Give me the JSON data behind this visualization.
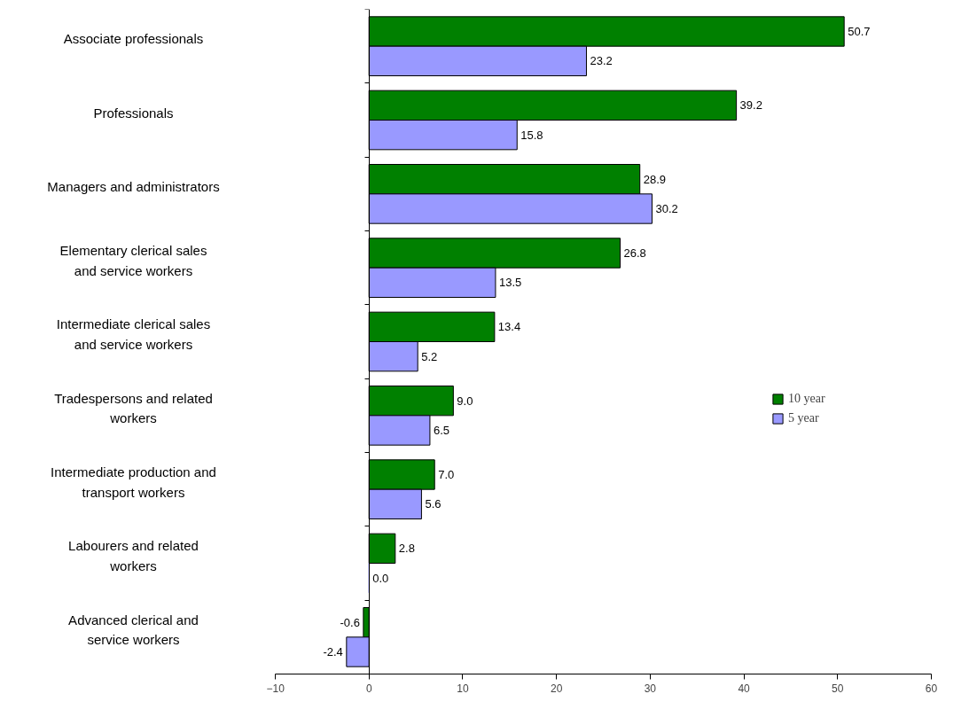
{
  "chart_data": {
    "type": "bar",
    "orientation": "horizontal",
    "categories": [
      "Associate professionals",
      "Professionals",
      "Managers and administrators",
      "Elementary clerical sales and service workers",
      "Intermediate clerical sales and service workers",
      "Tradespersons and related workers",
      "Intermediate production and transport workers",
      "Labourers and related workers",
      "Advanced clerical and service workers"
    ],
    "series": [
      {
        "name": "10 year",
        "color": "#008000",
        "values": [
          50.7,
          39.2,
          28.9,
          26.8,
          13.4,
          9.0,
          7.0,
          2.8,
          -0.6
        ],
        "value_labels": [
          "50.7",
          "39.2",
          "28.9",
          "26.8",
          "13.4",
          "9.0",
          "7.0",
          "2.8",
          "-0.6"
        ]
      },
      {
        "name": "5 year",
        "color": "#9999ff",
        "values": [
          23.2,
          15.8,
          30.2,
          13.5,
          5.2,
          6.5,
          5.6,
          0.0,
          -2.4
        ],
        "value_labels": [
          "23.2",
          "15.8",
          "30.2",
          "13.5",
          "5.2",
          "6.5",
          "5.6",
          "0.0",
          "-2.4"
        ]
      }
    ],
    "xlim": [
      -10,
      60
    ],
    "xticks": [
      -10,
      0,
      10,
      20,
      30,
      40,
      50,
      60
    ],
    "legend": "right"
  }
}
